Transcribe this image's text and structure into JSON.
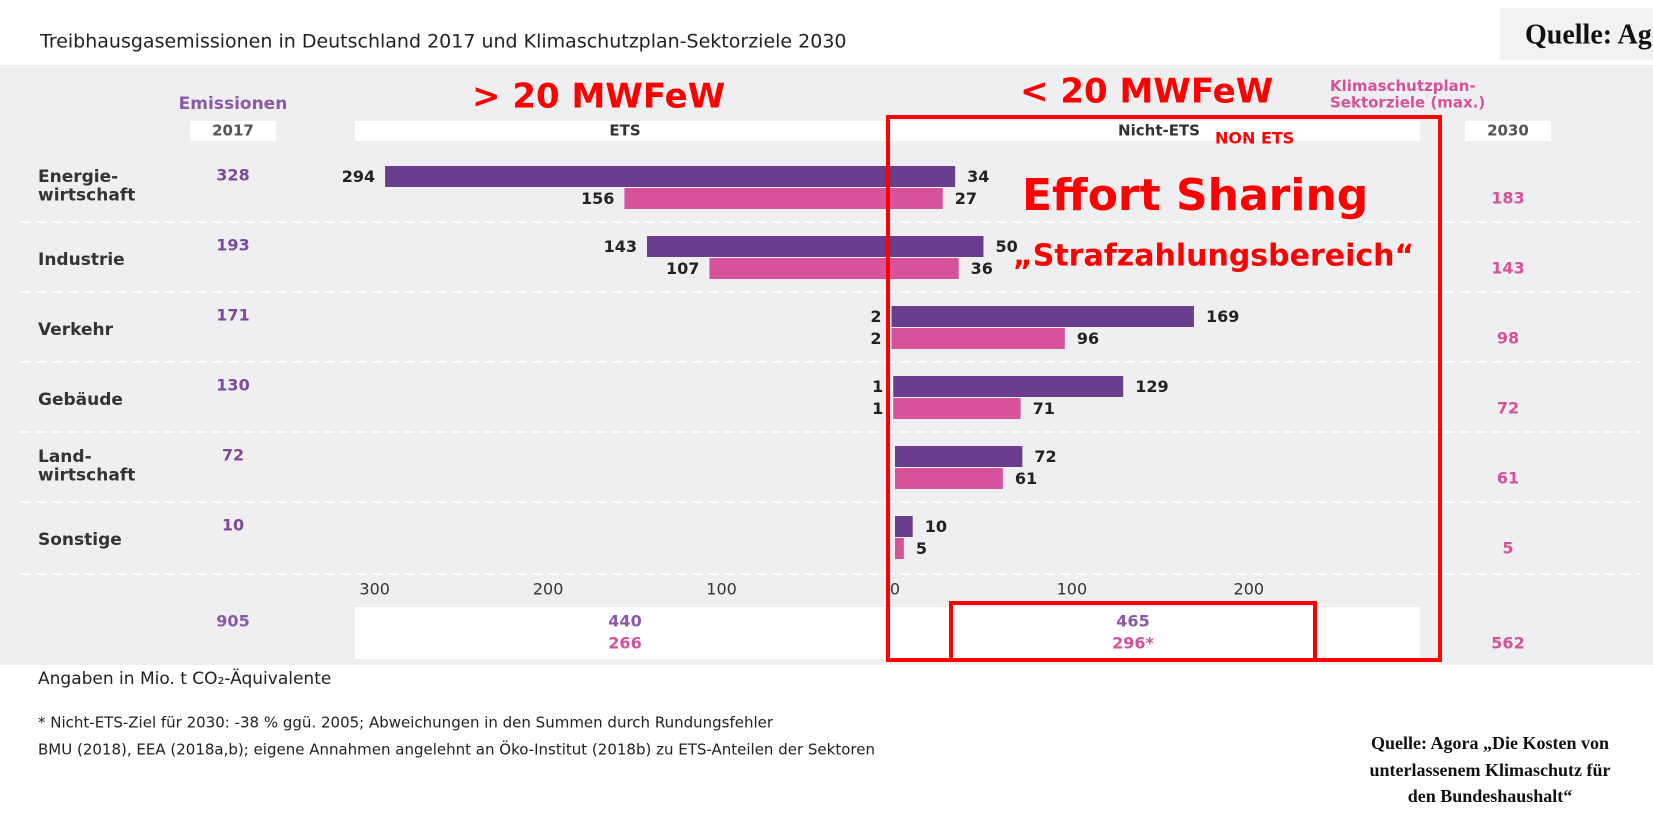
{
  "chart_data": {
    "type": "butterfly",
    "title": "Treibhausgasemissionen in Deutschland 2017 und Klimaschutzplan-Sektorziele 2030",
    "source": "Quelle: Agora",
    "categories": [
      "Energie-\nwirtschaft",
      "Industrie",
      "Verkehr",
      "Gebäude",
      "Land-\nwirtschaft",
      "Sonstige"
    ],
    "emissions_label": "Emissionen",
    "emissions_year": "2017",
    "emissions": [
      328,
      193,
      171,
      130,
      72,
      10
    ],
    "emissions_total": 905,
    "targets_label": "Klimaschutzplan-\nSektorziele (max.)",
    "targets_year": "2030",
    "targets": [
      183,
      143,
      98,
      72,
      61,
      5
    ],
    "targets_total": 562,
    "ets": {
      "header": "ETS",
      "xlim": [
        0,
        320
      ],
      "xticks": [
        300,
        200,
        100
      ],
      "series": [
        {
          "color": "#6b3d8e",
          "values": [
            294,
            143,
            2,
            1,
            null,
            null
          ]
        },
        {
          "color": "#d6529b",
          "values": [
            156,
            107,
            2,
            1,
            null,
            null
          ]
        }
      ],
      "totals": [
        440,
        266
      ]
    },
    "non_ets": {
      "header": "Nicht-ETS",
      "xlim": [
        0,
        290
      ],
      "xticks": [
        0,
        100,
        200
      ],
      "series": [
        {
          "color": "#6b3d8e",
          "values": [
            34,
            50,
            169,
            129,
            72,
            10
          ]
        },
        {
          "color": "#d6529b",
          "values": [
            27,
            36,
            96,
            71,
            61,
            5
          ]
        }
      ],
      "totals": [
        465,
        296
      ],
      "totals_labels": [
        "465",
        "296*"
      ]
    },
    "annotations": [
      "> 20 MWFeW",
      "< 20 MWFeW",
      "NON ETS",
      "Effort Sharing",
      "„Strafzahlungsbereich“"
    ],
    "units_note": "Angaben in Mio. t CO₂-Äquivalente",
    "footnotes": [
      "* Nicht-ETS-Ziel für 2030: -38 % ggü. 2005; Abweichungen in den Summen durch Rundungsfehler",
      "BMU (2018), EEA (2018a,b); eigene Annahmen angelehnt an Öko-Institut (2018b) zu ETS-Anteilen der Sektoren"
    ],
    "source_note": [
      "Quelle: Agora „Die Kosten von",
      "unterlassenem Klimaschutz für",
      "den Bundeshaushalt“"
    ]
  }
}
